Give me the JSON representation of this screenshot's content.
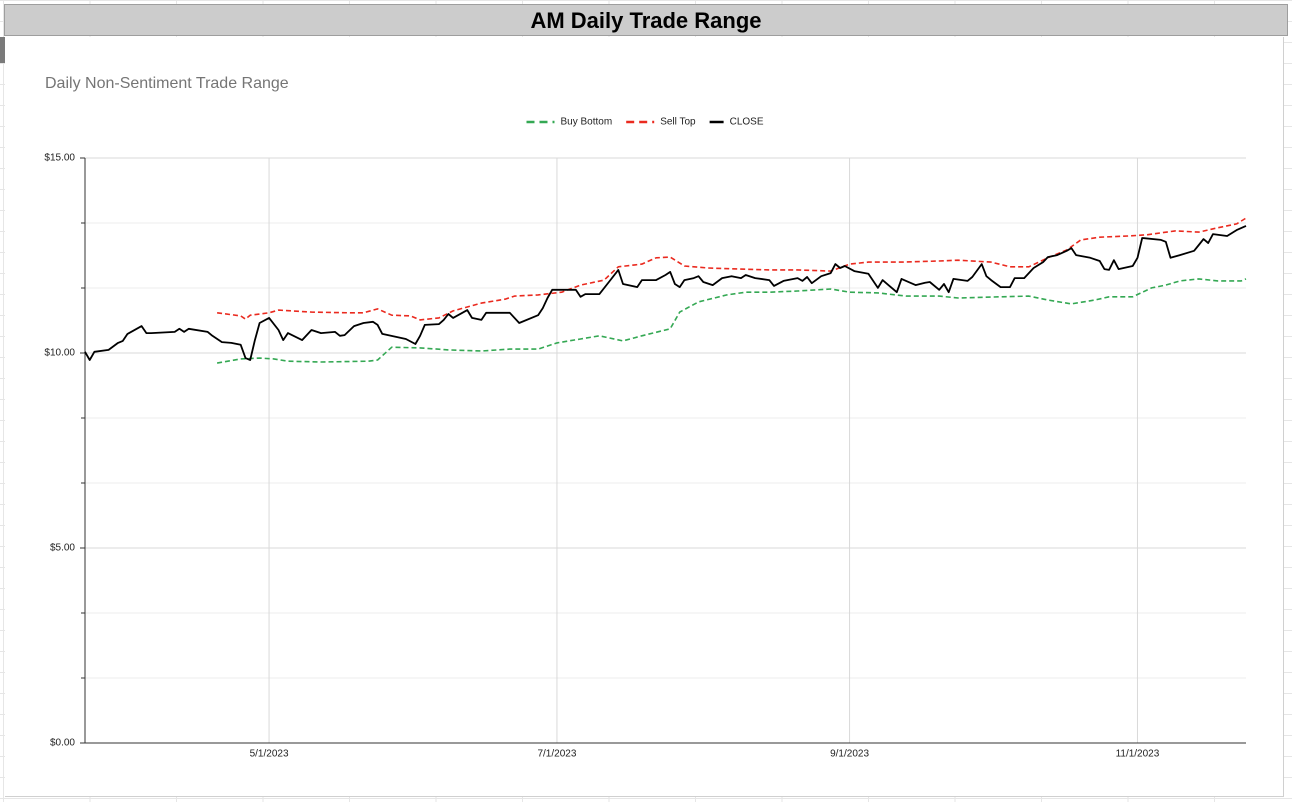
{
  "header": {
    "title": "AM Daily Trade Range"
  },
  "chart_data": {
    "type": "line",
    "title": "Daily Non-Sentiment Trade Range",
    "xlim": [
      "2023-03-23",
      "2023-11-24"
    ],
    "xticks": [
      {
        "value": "2023-05-01",
        "label": "5/1/2023"
      },
      {
        "value": "2023-07-01",
        "label": "7/1/2023"
      },
      {
        "value": "2023-09-01",
        "label": "9/1/2023"
      },
      {
        "value": "2023-11-01",
        "label": "11/1/2023"
      }
    ],
    "ylim": [
      0,
      15
    ],
    "yticks": [
      {
        "value": 0,
        "label": "$0.00"
      },
      {
        "value": 5,
        "label": "$5.00"
      },
      {
        "value": 10,
        "label": "$10.00"
      },
      {
        "value": 15,
        "label": "$15.00"
      }
    ],
    "y_minor_divisions": 3,
    "grid": true,
    "legend": "top",
    "series": [
      {
        "name": "Buy Bottom",
        "color": "#34a853",
        "dashed": true,
        "x": [
          "2023-04-20",
          "2023-04-25",
          "2023-04-29",
          "2023-05-02",
          "2023-05-05",
          "2023-05-12",
          "2023-05-22",
          "2023-05-24",
          "2023-05-27",
          "2023-06-02",
          "2023-06-08",
          "2023-06-15",
          "2023-06-21",
          "2023-06-27",
          "2023-07-01",
          "2023-07-06",
          "2023-07-10",
          "2023-07-15",
          "2023-07-19",
          "2023-07-25",
          "2023-07-27",
          "2023-07-31",
          "2023-08-06",
          "2023-08-10",
          "2023-08-15",
          "2023-08-21",
          "2023-08-28",
          "2023-09-01",
          "2023-09-07",
          "2023-09-13",
          "2023-09-20",
          "2023-09-24",
          "2023-10-03",
          "2023-10-09",
          "2023-10-13",
          "2023-10-18",
          "2023-10-23",
          "2023-10-26",
          "2023-10-31",
          "2023-11-04",
          "2023-11-07",
          "2023-11-10",
          "2023-11-14",
          "2023-11-18",
          "2023-11-23",
          "2023-11-24"
        ],
        "values": [
          9.74,
          9.85,
          9.87,
          9.85,
          9.79,
          9.77,
          9.79,
          9.82,
          10.15,
          10.13,
          10.08,
          10.05,
          10.1,
          10.1,
          10.26,
          10.36,
          10.44,
          10.31,
          10.44,
          10.62,
          11.05,
          11.31,
          11.49,
          11.56,
          11.56,
          11.59,
          11.64,
          11.56,
          11.54,
          11.46,
          11.46,
          11.41,
          11.44,
          11.46,
          11.36,
          11.26,
          11.36,
          11.44,
          11.44,
          11.67,
          11.74,
          11.85,
          11.9,
          11.85,
          11.85,
          11.9
        ]
      },
      {
        "name": "Sell Top",
        "color": "#ea2a1f",
        "dashed": true,
        "x": [
          "2023-04-20",
          "2023-04-25",
          "2023-04-26",
          "2023-04-27",
          "2023-05-01",
          "2023-05-03",
          "2023-05-10",
          "2023-05-18",
          "2023-05-21",
          "2023-05-24",
          "2023-05-27",
          "2023-05-31",
          "2023-06-02",
          "2023-06-06",
          "2023-06-09",
          "2023-06-15",
          "2023-06-20",
          "2023-06-22",
          "2023-06-27",
          "2023-07-02",
          "2023-07-06",
          "2023-07-11",
          "2023-07-14",
          "2023-07-19",
          "2023-07-22",
          "2023-07-25",
          "2023-07-28",
          "2023-08-02",
          "2023-08-09",
          "2023-08-15",
          "2023-08-21",
          "2023-08-28",
          "2023-09-01",
          "2023-09-05",
          "2023-09-12",
          "2023-09-20",
          "2023-09-24",
          "2023-10-01",
          "2023-10-05",
          "2023-10-09",
          "2023-10-13",
          "2023-10-17",
          "2023-10-20",
          "2023-10-24",
          "2023-10-30",
          "2023-11-03",
          "2023-11-09",
          "2023-11-14",
          "2023-11-18",
          "2023-11-22",
          "2023-11-24"
        ],
        "values": [
          11.03,
          10.95,
          10.87,
          10.97,
          11.03,
          11.1,
          11.05,
          11.03,
          11.03,
          11.13,
          10.97,
          10.95,
          10.85,
          10.9,
          11.08,
          11.28,
          11.38,
          11.46,
          11.49,
          11.56,
          11.74,
          11.87,
          12.21,
          12.28,
          12.44,
          12.46,
          12.23,
          12.18,
          12.15,
          12.13,
          12.13,
          12.1,
          12.28,
          12.33,
          12.33,
          12.36,
          12.38,
          12.33,
          12.21,
          12.21,
          12.44,
          12.64,
          12.9,
          12.97,
          13.0,
          13.03,
          13.13,
          13.1,
          13.21,
          13.31,
          13.46
        ]
      },
      {
        "name": "CLOSE",
        "color": "#000000",
        "dashed": false,
        "x": [
          "2023-03-23",
          "2023-03-24",
          "2023-03-25",
          "2023-03-28",
          "2023-03-30",
          "2023-03-31",
          "2023-04-01",
          "2023-04-04",
          "2023-04-05",
          "2023-04-06",
          "2023-04-11",
          "2023-04-12",
          "2023-04-13",
          "2023-04-14",
          "2023-04-18",
          "2023-04-19",
          "2023-04-21",
          "2023-04-23",
          "2023-04-25",
          "2023-04-26",
          "2023-04-27",
          "2023-04-28",
          "2023-04-29",
          "2023-05-01",
          "2023-05-03",
          "2023-05-04",
          "2023-05-05",
          "2023-05-08",
          "2023-05-10",
          "2023-05-12",
          "2023-05-15",
          "2023-05-16",
          "2023-05-17",
          "2023-05-19",
          "2023-05-21",
          "2023-05-23",
          "2023-05-24",
          "2023-05-25",
          "2023-05-30",
          "2023-06-01",
          "2023-06-02",
          "2023-06-03",
          "2023-06-06",
          "2023-06-07",
          "2023-06-08",
          "2023-06-09",
          "2023-06-12",
          "2023-06-13",
          "2023-06-15",
          "2023-06-16",
          "2023-06-21",
          "2023-06-23",
          "2023-06-27",
          "2023-06-28",
          "2023-06-29",
          "2023-06-30",
          "2023-07-05",
          "2023-07-06",
          "2023-07-07",
          "2023-07-10",
          "2023-07-12",
          "2023-07-14",
          "2023-07-15",
          "2023-07-18",
          "2023-07-19",
          "2023-07-22",
          "2023-07-24",
          "2023-07-25",
          "2023-07-26",
          "2023-07-27",
          "2023-07-28",
          "2023-07-30",
          "2023-07-31",
          "2023-08-01",
          "2023-08-03",
          "2023-08-05",
          "2023-08-07",
          "2023-08-09",
          "2023-08-10",
          "2023-08-12",
          "2023-08-15",
          "2023-08-16",
          "2023-08-18",
          "2023-08-21",
          "2023-08-22",
          "2023-08-23",
          "2023-08-24",
          "2023-08-26",
          "2023-08-28",
          "2023-08-29",
          "2023-08-30",
          "2023-08-31",
          "2023-09-02",
          "2023-09-05",
          "2023-09-07",
          "2023-09-08",
          "2023-09-11",
          "2023-09-12",
          "2023-09-15",
          "2023-09-17",
          "2023-09-18",
          "2023-09-20",
          "2023-09-21",
          "2023-09-22",
          "2023-09-23",
          "2023-09-26",
          "2023-09-27",
          "2023-09-29",
          "2023-09-30",
          "2023-10-01",
          "2023-10-03",
          "2023-10-05",
          "2023-10-06",
          "2023-10-08",
          "2023-10-10",
          "2023-10-12",
          "2023-10-13",
          "2023-10-15",
          "2023-10-17",
          "2023-10-18",
          "2023-10-19",
          "2023-10-22",
          "2023-10-24",
          "2023-10-25",
          "2023-10-26",
          "2023-10-27",
          "2023-10-28",
          "2023-10-31",
          "2023-11-01",
          "2023-11-02",
          "2023-11-06",
          "2023-11-07",
          "2023-11-08",
          "2023-11-10",
          "2023-11-13",
          "2023-11-14",
          "2023-11-15",
          "2023-11-16",
          "2023-11-17",
          "2023-11-20",
          "2023-11-22",
          "2023-11-24"
        ],
        "values": [
          10.03,
          9.82,
          10.03,
          10.08,
          10.26,
          10.31,
          10.49,
          10.69,
          10.51,
          10.51,
          10.54,
          10.62,
          10.54,
          10.62,
          10.54,
          10.44,
          10.28,
          10.26,
          10.21,
          9.87,
          9.82,
          10.33,
          10.77,
          10.9,
          10.59,
          10.33,
          10.51,
          10.33,
          10.59,
          10.51,
          10.54,
          10.44,
          10.46,
          10.69,
          10.77,
          10.8,
          10.72,
          10.49,
          10.36,
          10.23,
          10.44,
          10.72,
          10.74,
          10.85,
          11.0,
          10.9,
          11.1,
          10.9,
          10.85,
          11.03,
          11.03,
          10.77,
          10.97,
          11.15,
          11.41,
          11.62,
          11.62,
          11.44,
          11.51,
          11.51,
          11.82,
          12.13,
          11.77,
          11.69,
          11.87,
          11.87,
          12.0,
          12.08,
          11.77,
          11.69,
          11.87,
          11.92,
          11.97,
          11.82,
          11.74,
          11.92,
          11.97,
          11.92,
          12.0,
          11.92,
          11.87,
          11.72,
          11.85,
          11.92,
          11.85,
          11.95,
          11.79,
          11.97,
          12.05,
          12.28,
          12.18,
          12.23,
          12.1,
          12.03,
          11.67,
          11.87,
          11.56,
          11.9,
          11.74,
          11.8,
          11.82,
          11.62,
          11.77,
          11.56,
          11.9,
          11.85,
          11.95,
          12.28,
          11.97,
          11.87,
          11.69,
          11.69,
          11.92,
          11.92,
          12.18,
          12.33,
          12.46,
          12.51,
          12.62,
          12.69,
          12.51,
          12.44,
          12.36,
          12.15,
          12.13,
          12.38,
          12.15,
          12.23,
          12.44,
          12.95,
          12.9,
          12.85,
          12.44,
          12.51,
          12.62,
          12.77,
          12.92,
          12.82,
          13.05,
          13.0,
          13.15,
          13.26
        ]
      }
    ]
  }
}
